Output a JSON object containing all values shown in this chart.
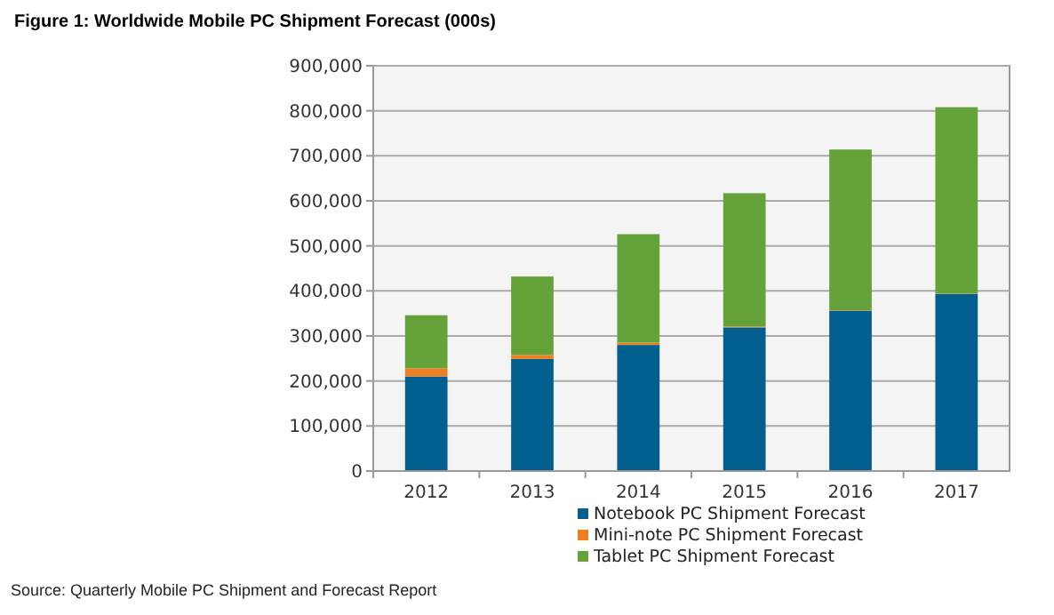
{
  "chart_data": {
    "type": "bar",
    "title": "Figure 1: Worldwide Mobile PC Shipment Forecast (000s)",
    "stacked": true,
    "categories": [
      "2012",
      "2013",
      "2014",
      "2015",
      "2016",
      "2017"
    ],
    "series": [
      {
        "name": "Notebook PC Shipment Forecast",
        "color": "#005f8f",
        "values": [
          210000,
          249000,
          280000,
          319000,
          356000,
          393000
        ]
      },
      {
        "name": "Mini-note PC Shipment Forecast",
        "color": "#f07f22",
        "values": [
          18000,
          9000,
          5000,
          2000,
          1000,
          1000
        ]
      },
      {
        "name": "Tablet PC Shipment Forecast",
        "color": "#66a23a",
        "values": [
          118000,
          174000,
          241000,
          296000,
          357000,
          414000
        ]
      }
    ],
    "ylim": [
      0,
      900000
    ],
    "yticks": [
      0,
      {
        "value": 100000,
        "label": "100,000"
      },
      {
        "value": 200000,
        "label": "200,000"
      },
      {
        "value": 300000,
        "label": "300,000"
      },
      {
        "value": 400000,
        "label": "400,000"
      },
      {
        "value": 500000,
        "label": "500,000"
      },
      {
        "value": 600000,
        "label": "600,000"
      },
      {
        "value": 700000,
        "label": "700,000"
      },
      {
        "value": 800000,
        "label": "800,000"
      },
      {
        "value": 900000,
        "label": "900,000"
      }
    ],
    "grid": "y",
    "legend": "bottom",
    "annotations": [
      "Source: Quarterly Mobile PC Shipment and Forecast Report"
    ]
  }
}
